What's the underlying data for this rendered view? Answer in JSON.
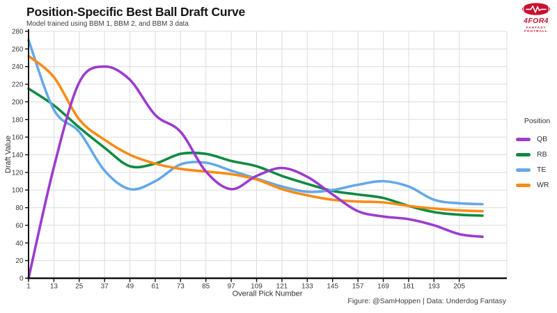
{
  "header": {
    "title": "Position-Specific Best Ball Draft Curve",
    "subtitle": "Model trained using BBM 1, BBM 2, and BBM 3 data"
  },
  "logo": {
    "brand": "4FOR4",
    "tagline": "FANTASY FOOTBALL",
    "color": "#C8102E",
    "icon": "football-pulse-icon"
  },
  "chart_data": {
    "type": "line",
    "title": "Position-Specific Best Ball Draft Curve",
    "subtitle": "Model trained using BBM 1, BBM 2, and BBM 3 data",
    "xlabel": "Overall Pick Number",
    "ylabel": "Draft Value",
    "xlim": [
      1,
      216
    ],
    "ylim": [
      0,
      280
    ],
    "y_ticks": [
      0,
      20,
      40,
      60,
      80,
      100,
      120,
      140,
      160,
      180,
      200,
      220,
      240,
      260,
      280
    ],
    "x_ticks": [
      1,
      13,
      25,
      37,
      49,
      61,
      73,
      85,
      97,
      109,
      121,
      133,
      145,
      157,
      169,
      181,
      193,
      205
    ],
    "grid": true,
    "legend_position": "right",
    "legend_title": "Position",
    "x": [
      1,
      13,
      25,
      37,
      49,
      61,
      73,
      85,
      97,
      109,
      121,
      133,
      145,
      157,
      169,
      181,
      193,
      205,
      216
    ],
    "series": [
      {
        "name": "QB",
        "color": "#9C3BCE",
        "values": [
          0,
          126,
          222,
          240,
          225,
          185,
          166,
          121,
          101,
          116,
          125,
          115,
          95,
          76,
          70,
          67,
          60,
          50,
          47
        ]
      },
      {
        "name": "RB",
        "color": "#0E8A42",
        "values": [
          215,
          196,
          171,
          148,
          127,
          130,
          141,
          141,
          133,
          127,
          116,
          107,
          99,
          95,
          91,
          82,
          75,
          72,
          71
        ]
      },
      {
        "name": "TE",
        "color": "#64A8E8",
        "values": [
          270,
          191,
          166,
          122,
          101,
          110,
          129,
          131,
          122,
          113,
          104,
          98,
          100,
          106,
          110,
          104,
          89,
          85,
          84
        ]
      },
      {
        "name": "WR",
        "color": "#FA8B16",
        "values": [
          252,
          228,
          180,
          157,
          140,
          130,
          124,
          121,
          118,
          112,
          101,
          94,
          89,
          87,
          86,
          82,
          79,
          77,
          76
        ]
      }
    ],
    "draw_order": [
      1,
      2,
      3,
      0
    ]
  },
  "caption": {
    "text": "Figure: @SamHoppen | Data: Underdog Fantasy"
  }
}
